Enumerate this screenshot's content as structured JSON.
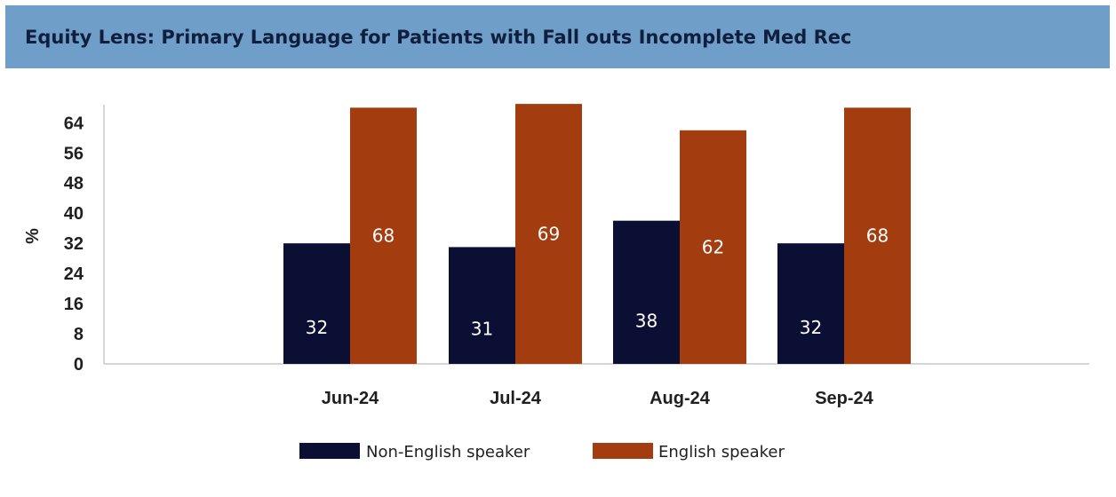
{
  "header": {
    "title": "Equity Lens: Primary Language for Patients with Fall outs Incomplete Med Rec"
  },
  "colors": {
    "header_bg": "#6f9fc9",
    "non_english": "#0b0f33",
    "english": "#a33c0e"
  },
  "chart_data": {
    "type": "bar",
    "title": "Equity Lens: Primary Language for Patients with Fall outs Incomplete Med Rec",
    "xlabel": "",
    "ylabel": "%",
    "categories": [
      "Jun-24",
      "Jul-24",
      "Aug-24",
      "Sep-24"
    ],
    "series": [
      {
        "name": "Non-English speaker",
        "color": "#0b0f33",
        "values": [
          32,
          31,
          38,
          32
        ]
      },
      {
        "name": "English speaker",
        "color": "#a33c0e",
        "values": [
          68,
          69,
          62,
          68
        ]
      }
    ],
    "yticks": [
      0,
      8,
      16,
      24,
      32,
      40,
      48,
      56,
      64
    ],
    "ylim": [
      0,
      69
    ],
    "data_labels": true,
    "legend_position": "bottom"
  }
}
